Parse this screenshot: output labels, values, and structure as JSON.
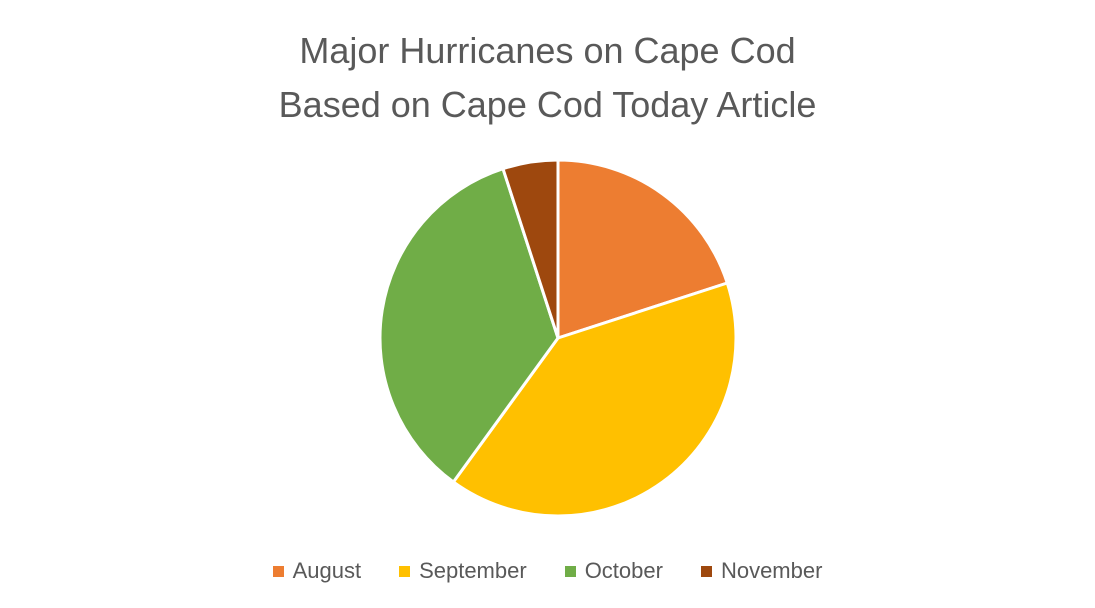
{
  "chart_data": {
    "type": "pie",
    "title_lines": [
      "Major Hurricanes on Cape Cod",
      "Based on Cape Cod Today Article"
    ],
    "categories": [
      "August",
      "September",
      "October",
      "November"
    ],
    "values": [
      4,
      8,
      7,
      1
    ],
    "colors": [
      "#ED7D31",
      "#FFC000",
      "#70AD47",
      "#9E480E"
    ],
    "start_angle_deg": 0,
    "direction": "clockwise",
    "legend_position": "bottom"
  }
}
